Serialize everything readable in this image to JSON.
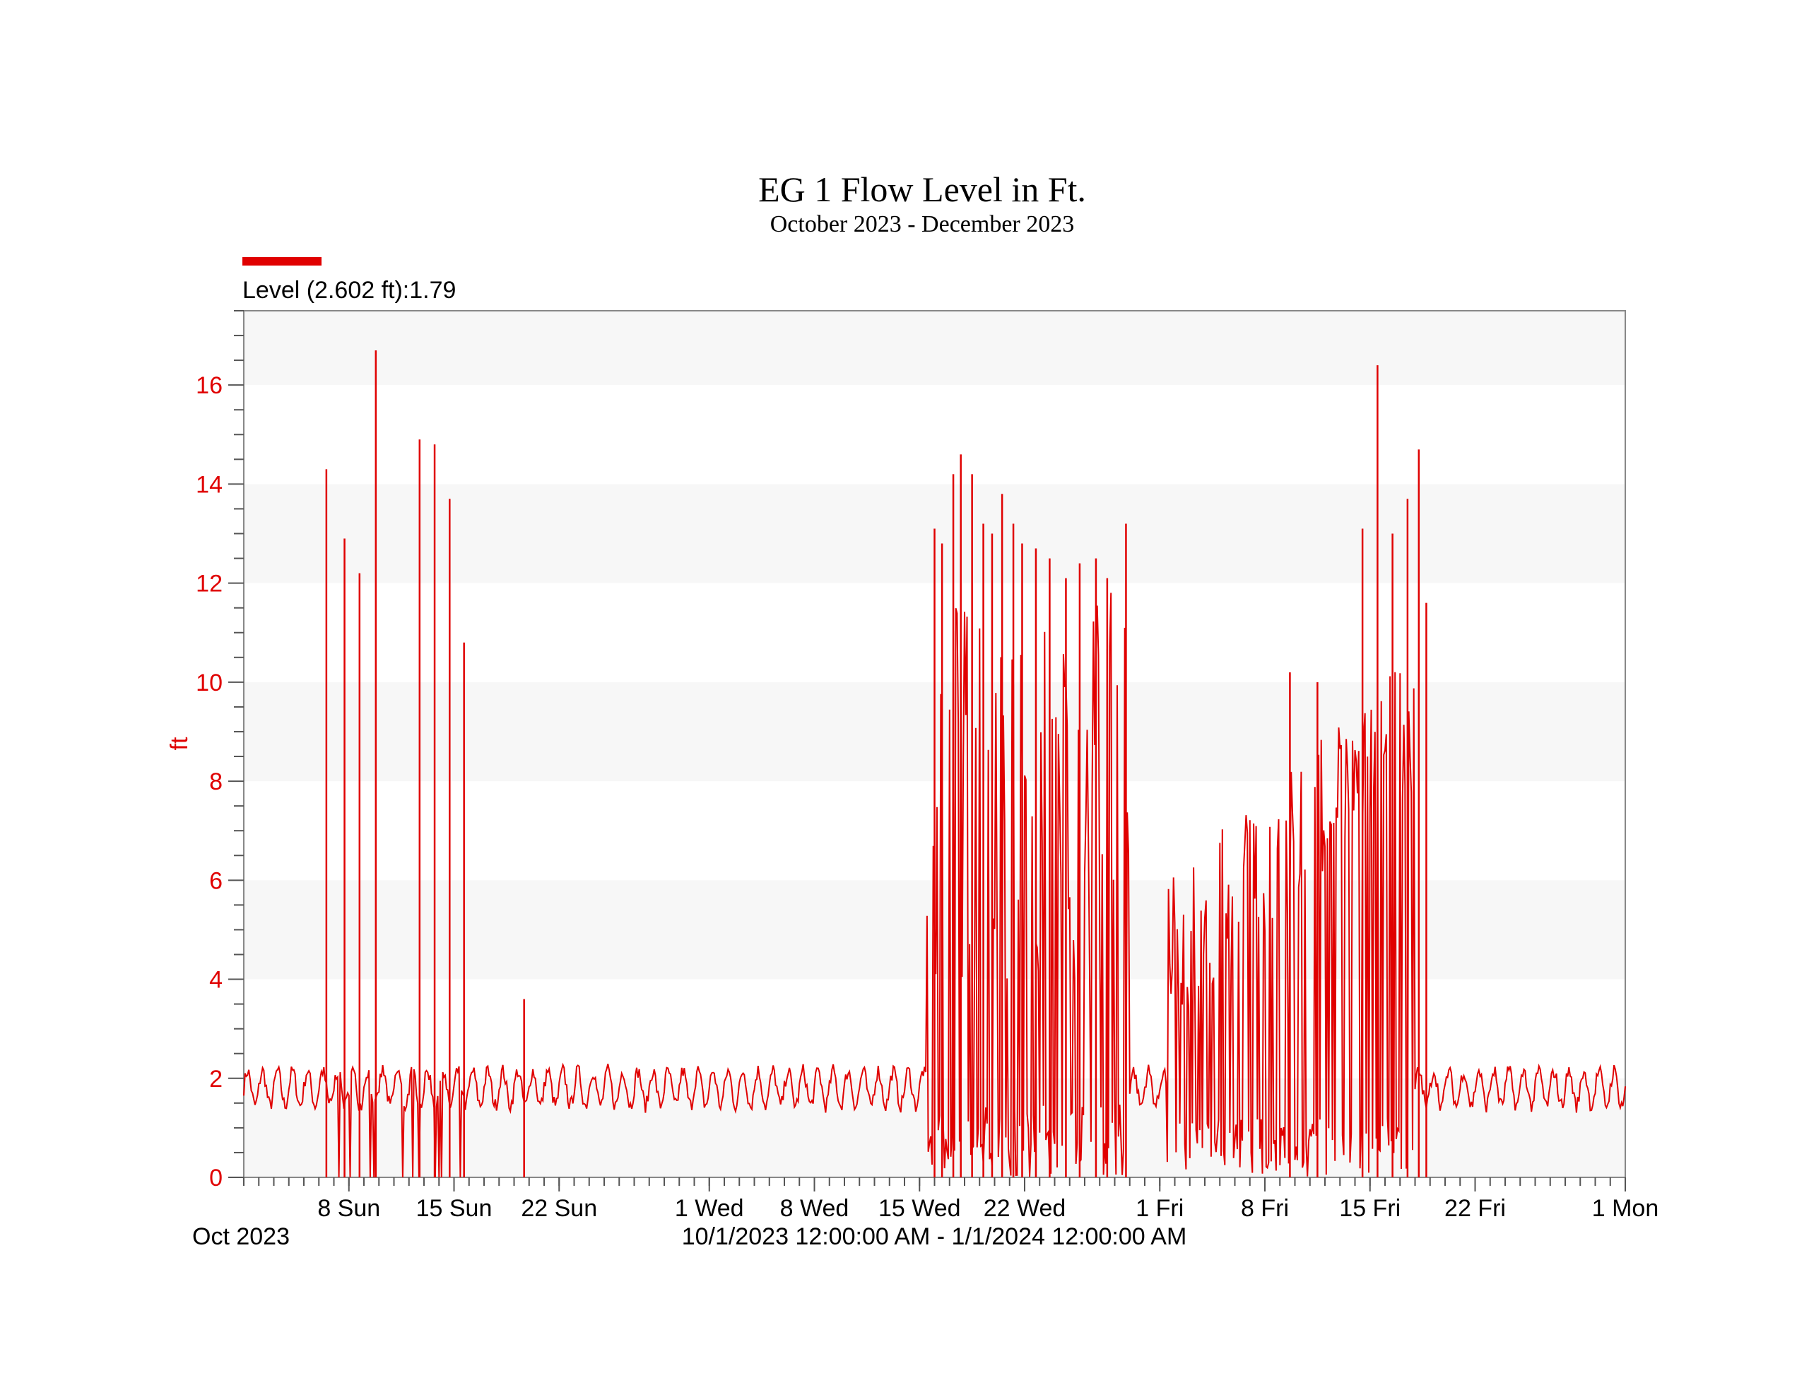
{
  "chart_data": {
    "type": "line",
    "title": "EG 1 Flow Level in Ft.",
    "subtitle": "October 2023 - December 2023",
    "legend_label": "Level (2.602 ft):1.79",
    "series_color": "#e00000",
    "ylabel": "ft",
    "ylim": [
      0,
      17.5
    ],
    "yticks": [
      "0",
      "2",
      "4",
      "6",
      "8",
      "10",
      "12",
      "14",
      "16"
    ],
    "xlabel": "10/1/2023 12:00:00 AM - 1/1/2024 12:00:00 AM",
    "x_start_label": "Oct 2023",
    "xrange": [
      "2023-10-01T00:00",
      "2024-01-01T00:00"
    ],
    "xticks": [
      {
        "date": "2023-10-08",
        "label": "8 Sun"
      },
      {
        "date": "2023-10-15",
        "label": "15 Sun"
      },
      {
        "date": "2023-10-22",
        "label": "22 Sun"
      },
      {
        "date": "2023-11-01",
        "label": "1 Wed"
      },
      {
        "date": "2023-11-08",
        "label": "8 Wed"
      },
      {
        "date": "2023-11-15",
        "label": "15 Wed"
      },
      {
        "date": "2023-11-22",
        "label": "22 Wed"
      },
      {
        "date": "2023-12-01",
        "label": "1 Fri"
      },
      {
        "date": "2023-12-08",
        "label": "8 Fri"
      },
      {
        "date": "2023-12-15",
        "label": "15 Fri"
      },
      {
        "date": "2023-12-22",
        "label": "22 Fri"
      },
      {
        "date": "2024-01-01",
        "label": "1 Mon"
      }
    ],
    "baseline_ft": 1.8,
    "spikes": [
      {
        "x": "2023-10-06T12:00",
        "y": 14.3
      },
      {
        "x": "2023-10-07T17:00",
        "y": 12.9
      },
      {
        "x": "2023-10-08T17:00",
        "y": 12.2
      },
      {
        "x": "2023-10-09T19:00",
        "y": 16.7
      },
      {
        "x": "2023-10-12T17:00",
        "y": 14.9
      },
      {
        "x": "2023-10-13T17:00",
        "y": 14.8
      },
      {
        "x": "2023-10-14T17:00",
        "y": 13.7
      },
      {
        "x": "2023-10-15T16:00",
        "y": 10.8
      },
      {
        "x": "2023-10-19T16:00",
        "y": 3.6
      },
      {
        "x": "2023-11-16T00:00",
        "y": 13.1
      },
      {
        "x": "2023-11-16T12:00",
        "y": 12.8
      },
      {
        "x": "2023-11-17T06:00",
        "y": 14.2
      },
      {
        "x": "2023-11-17T18:00",
        "y": 14.6
      },
      {
        "x": "2023-11-18T12:00",
        "y": 14.2
      },
      {
        "x": "2023-11-19T06:00",
        "y": 13.2
      },
      {
        "x": "2023-11-19T20:00",
        "y": 13.0
      },
      {
        "x": "2023-11-20T12:00",
        "y": 13.8
      },
      {
        "x": "2023-11-21T06:00",
        "y": 13.2
      },
      {
        "x": "2023-11-21T20:00",
        "y": 12.8
      },
      {
        "x": "2023-11-22T18:00",
        "y": 12.7
      },
      {
        "x": "2023-11-23T16:00",
        "y": 12.5
      },
      {
        "x": "2023-11-24T18:00",
        "y": 12.1
      },
      {
        "x": "2023-11-25T16:00",
        "y": 12.4
      },
      {
        "x": "2023-11-26T18:00",
        "y": 12.5
      },
      {
        "x": "2023-11-27T12:00",
        "y": 12.1
      },
      {
        "x": "2023-11-28T18:00",
        "y": 13.2
      },
      {
        "x": "2023-12-14T12:00",
        "y": 13.1
      },
      {
        "x": "2023-12-15T12:00",
        "y": 16.4
      },
      {
        "x": "2023-12-16T12:00",
        "y": 13.0
      },
      {
        "x": "2023-12-17T12:00",
        "y": 13.7
      },
      {
        "x": "2023-12-18T06:00",
        "y": 14.7
      },
      {
        "x": "2023-12-18T18:00",
        "y": 11.6
      },
      {
        "x": "2023-12-09T16:00",
        "y": 10.2
      },
      {
        "x": "2023-12-11T12:00",
        "y": 10.0
      }
    ]
  }
}
